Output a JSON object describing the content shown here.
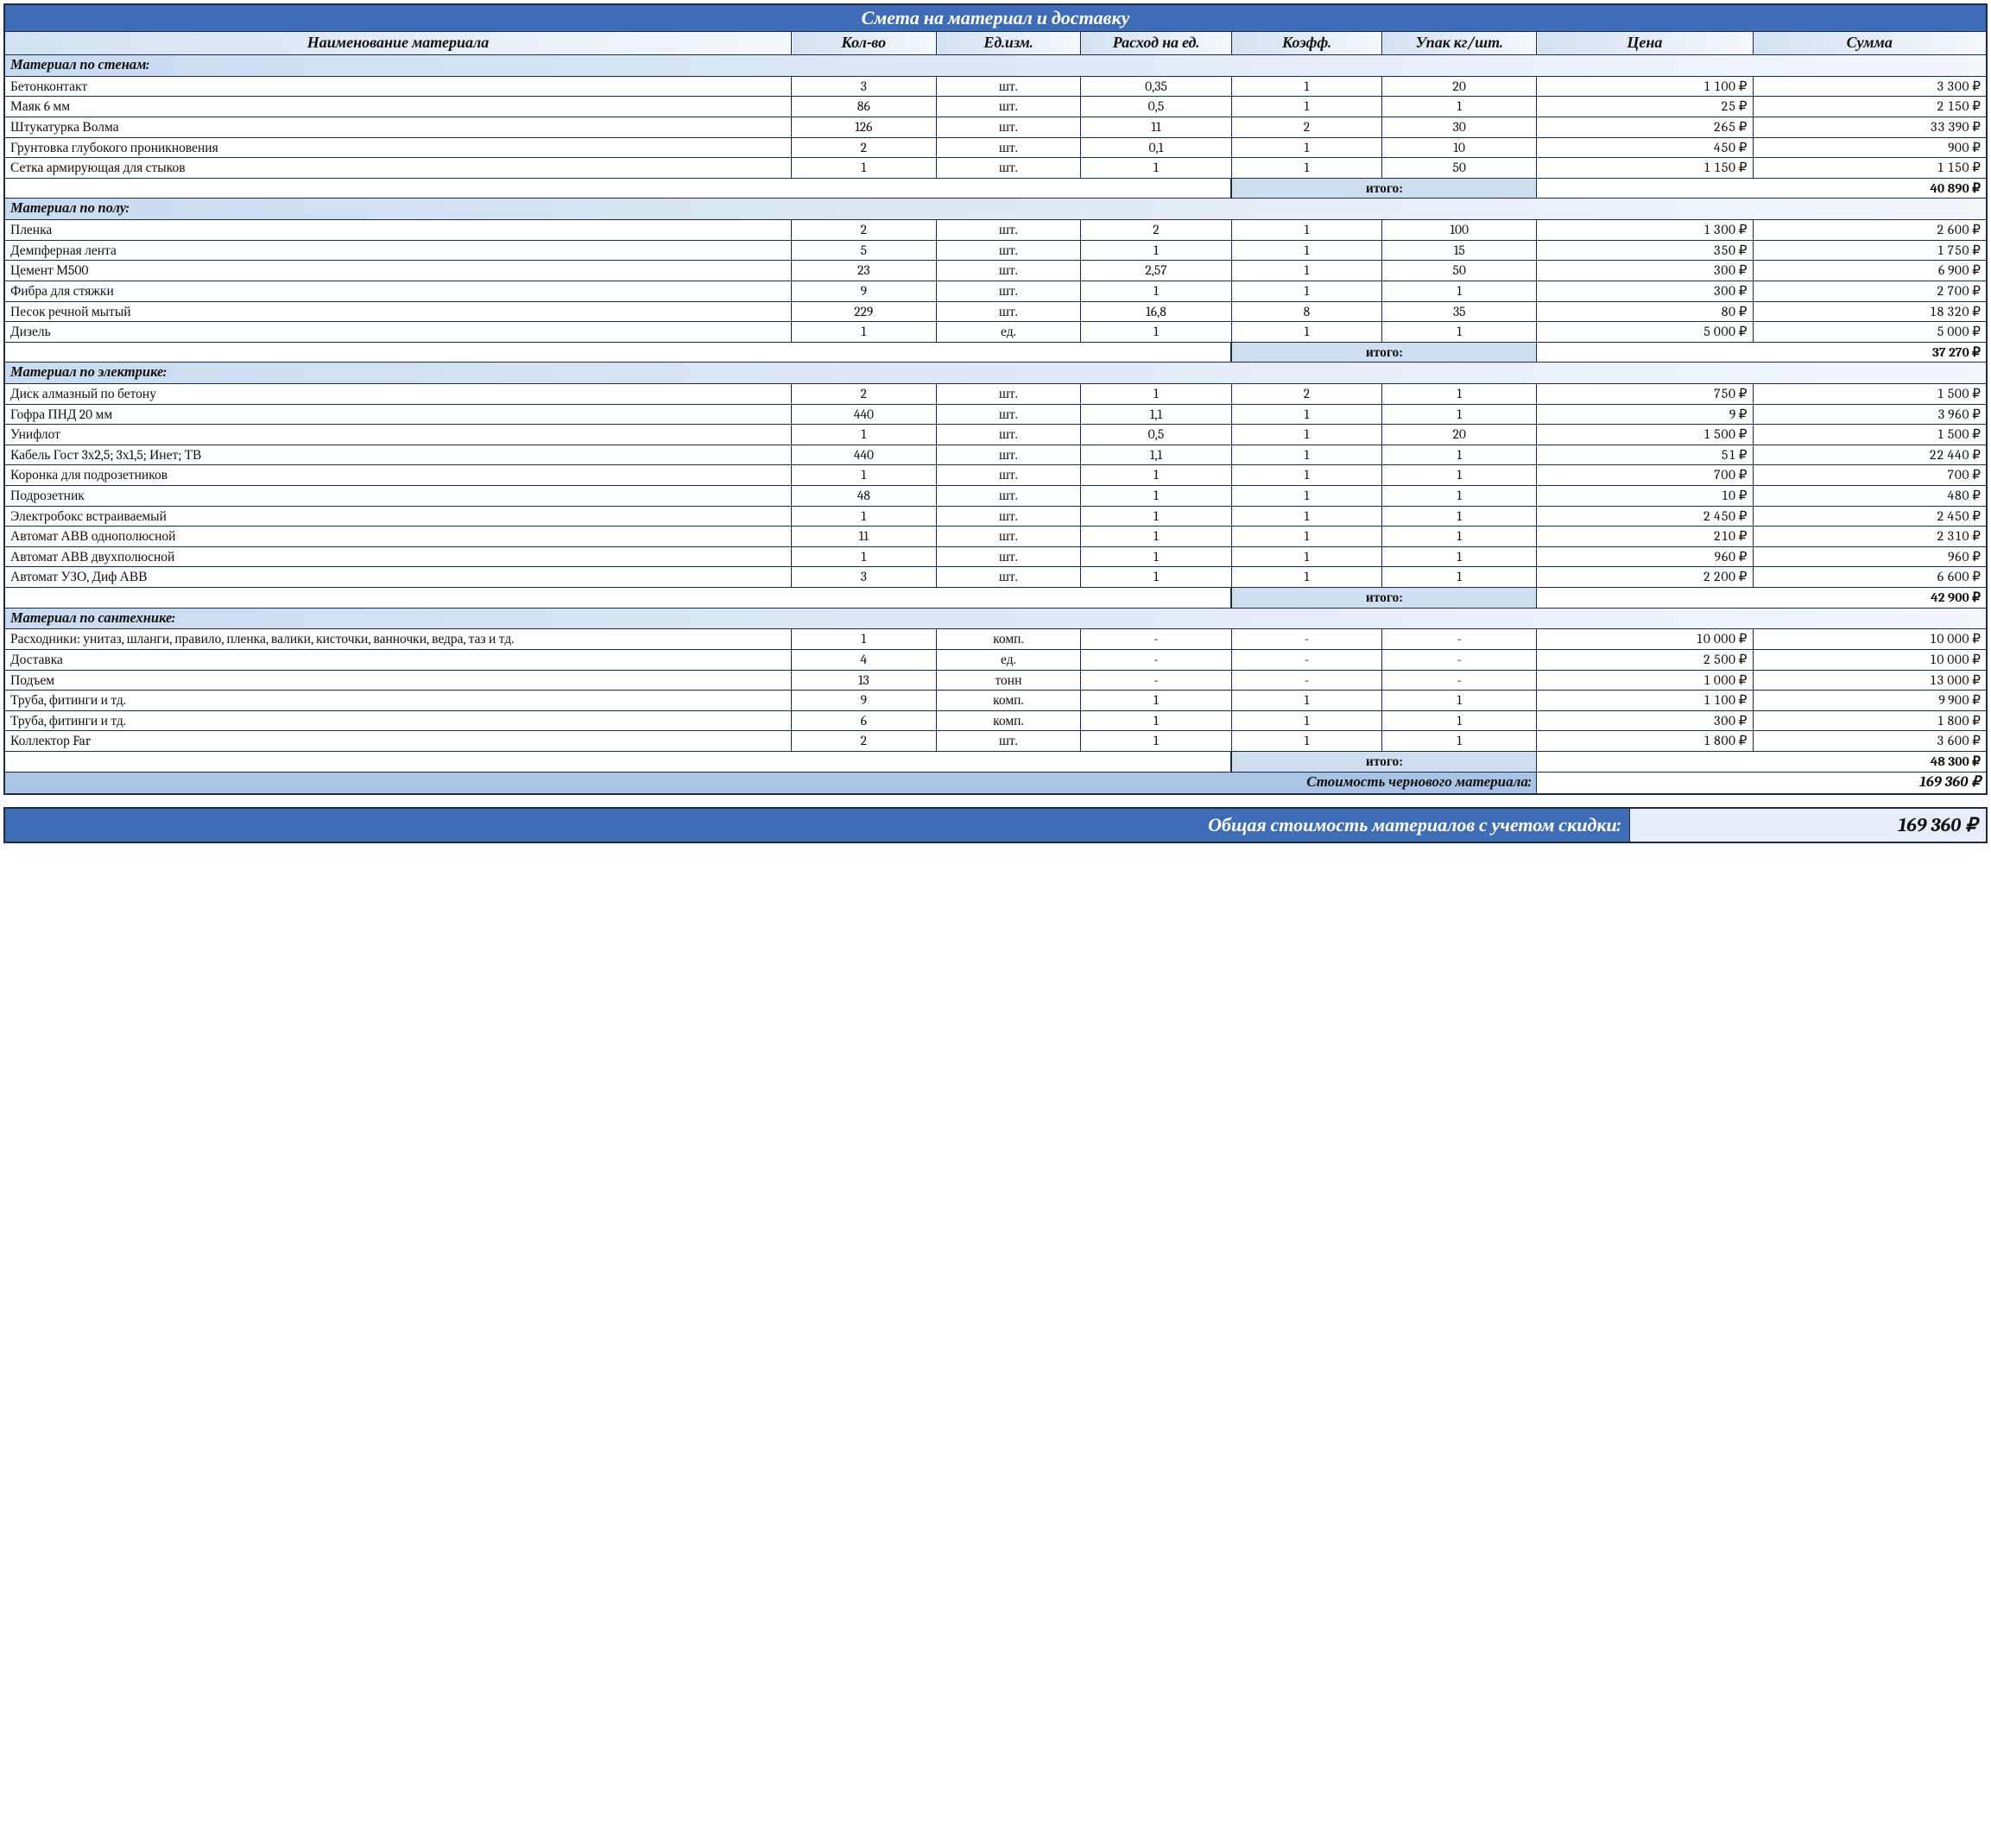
{
  "title": "Смета на материал и доставку",
  "columns": [
    "Наименование материала",
    "Кол-во",
    "Ед.изм.",
    "Расход на ед.",
    "Коэфф.",
    "Упак кг/шт.",
    "Цена",
    "Сумма"
  ],
  "subtotal_label": "итого:",
  "rough_cost_label": "Стоимость чернового материала:",
  "rough_cost_value": "169 360 ₽",
  "grand_label": "Общая стоимость материалов с учетом скидки:",
  "grand_value": "169 360 ₽",
  "col_widths_pct": [
    39.7,
    7.3,
    7.3,
    7.6,
    7.6,
    7.8,
    10.9,
    11.8
  ],
  "colors": {
    "header_bg": "#3f6db5",
    "header_text": "#ffffff",
    "colhdr_grad_from": "#d3e1f2",
    "colhdr_grad_to": "#f5f8fc",
    "group_grad_from": "#c9dbf0",
    "group_grad_to": "#f3f7fc",
    "subtotal_label_bg": "#cfdff1",
    "roughcost_label_bg": "#a9c3e4",
    "border": "#1e2b46",
    "text": "#111111",
    "row_bg": "#ffffff"
  },
  "typography": {
    "family": "Cambria / Georgia serif",
    "base_pt": 15.5,
    "title_pt": 22,
    "header_pt": 18,
    "group_pt": 16.5
  },
  "groups": [
    {
      "title": "Материал по стенам:",
      "subtotal": "40 890 ₽",
      "rows": [
        {
          "name": "Бетонконтакт",
          "qty": "3",
          "unit": "шт.",
          "rate": "0,35",
          "coef": "1",
          "pack": "20",
          "price": "1 100 ₽",
          "sum": "3 300 ₽"
        },
        {
          "name": "Маяк 6 мм",
          "qty": "86",
          "unit": "шт.",
          "rate": "0,5",
          "coef": "1",
          "pack": "1",
          "price": "25 ₽",
          "sum": "2 150 ₽"
        },
        {
          "name": "Штукатурка Волма",
          "qty": "126",
          "unit": "шт.",
          "rate": "11",
          "coef": "2",
          "pack": "30",
          "price": "265 ₽",
          "sum": "33 390 ₽"
        },
        {
          "name": "Грунтовка глубокого проникновения",
          "qty": "2",
          "unit": "шт.",
          "rate": "0,1",
          "coef": "1",
          "pack": "10",
          "price": "450 ₽",
          "sum": "900 ₽"
        },
        {
          "name": "Сетка армирующая для стыков",
          "qty": "1",
          "unit": "шт.",
          "rate": "1",
          "coef": "1",
          "pack": "50",
          "price": "1 150 ₽",
          "sum": "1 150 ₽"
        }
      ]
    },
    {
      "title": "Материал по полу:",
      "subtotal": "37 270 ₽",
      "rows": [
        {
          "name": "Пленка",
          "qty": "2",
          "unit": "шт.",
          "rate": "2",
          "coef": "1",
          "pack": "100",
          "price": "1 300 ₽",
          "sum": "2 600 ₽"
        },
        {
          "name": "Демпферная лента",
          "qty": "5",
          "unit": "шт.",
          "rate": "1",
          "coef": "1",
          "pack": "15",
          "price": "350 ₽",
          "sum": "1 750 ₽"
        },
        {
          "name": "Цемент М500",
          "qty": "23",
          "unit": "шт.",
          "rate": "2,57",
          "coef": "1",
          "pack": "50",
          "price": "300 ₽",
          "sum": "6 900 ₽"
        },
        {
          "name": "Фибра для стяжки",
          "qty": "9",
          "unit": "шт.",
          "rate": "1",
          "coef": "1",
          "pack": "1",
          "price": "300 ₽",
          "sum": "2 700 ₽"
        },
        {
          "name": "Песок речной мытый",
          "qty": "229",
          "unit": "шт.",
          "rate": "16,8",
          "coef": "8",
          "pack": "35",
          "price": "80 ₽",
          "sum": "18 320 ₽"
        },
        {
          "name": "Дизель",
          "qty": "1",
          "unit": "ед.",
          "rate": "1",
          "coef": "1",
          "pack": "1",
          "price": "5 000 ₽",
          "sum": "5 000 ₽"
        }
      ]
    },
    {
      "title": "Материал по электрике:",
      "subtotal": "42 900 ₽",
      "rows": [
        {
          "name": "Диск алмазный по бетону",
          "qty": "2",
          "unit": "шт.",
          "rate": "1",
          "coef": "2",
          "pack": "1",
          "price": "750 ₽",
          "sum": "1 500 ₽"
        },
        {
          "name": "Гофра ПНД 20 мм",
          "qty": "440",
          "unit": "шт.",
          "rate": "1,1",
          "coef": "1",
          "pack": "1",
          "price": "9 ₽",
          "sum": "3 960 ₽"
        },
        {
          "name": "Унифлот",
          "qty": "1",
          "unit": "шт.",
          "rate": "0,5",
          "coef": "1",
          "pack": "20",
          "price": "1 500 ₽",
          "sum": "1 500 ₽"
        },
        {
          "name": "Кабель Гост 3х2,5; 3х1,5; Инет; ТВ",
          "qty": "440",
          "unit": "шт.",
          "rate": "1,1",
          "coef": "1",
          "pack": "1",
          "price": "51 ₽",
          "sum": "22 440 ₽"
        },
        {
          "name": "Коронка для подрозетников",
          "qty": "1",
          "unit": "шт.",
          "rate": "1",
          "coef": "1",
          "pack": "1",
          "price": "700 ₽",
          "sum": "700 ₽"
        },
        {
          "name": "Подрозетник",
          "qty": "48",
          "unit": "шт.",
          "rate": "1",
          "coef": "1",
          "pack": "1",
          "price": "10 ₽",
          "sum": "480 ₽"
        },
        {
          "name": "Электробокс встраиваемый",
          "qty": "1",
          "unit": "шт.",
          "rate": "1",
          "coef": "1",
          "pack": "1",
          "price": "2 450 ₽",
          "sum": "2 450 ₽"
        },
        {
          "name": "Автомат АВВ однополюсной",
          "qty": "11",
          "unit": "шт.",
          "rate": "1",
          "coef": "1",
          "pack": "1",
          "price": "210 ₽",
          "sum": "2 310 ₽"
        },
        {
          "name": "Автомат АВВ двухполюсной",
          "qty": "1",
          "unit": "шт.",
          "rate": "1",
          "coef": "1",
          "pack": "1",
          "price": "960 ₽",
          "sum": "960 ₽"
        },
        {
          "name": "Автомат УЗО, Диф АВВ",
          "qty": "3",
          "unit": "шт.",
          "rate": "1",
          "coef": "1",
          "pack": "1",
          "price": "2 200 ₽",
          "sum": "6 600 ₽"
        }
      ]
    },
    {
      "title": "Материал по сантехнике:",
      "subtotal": "48 300 ₽",
      "rows": [
        {
          "name": "Расходники: унитаз, шланги, правило, пленка, валики, кисточки, ванночки, ведра, таз и тд.",
          "qty": "1",
          "unit": "комп.",
          "rate": "-",
          "coef": "-",
          "pack": "-",
          "price": "10 000 ₽",
          "sum": "10 000 ₽"
        },
        {
          "name": "Доставка",
          "qty": "4",
          "unit": "ед.",
          "rate": "-",
          "coef": "-",
          "pack": "-",
          "price": "2 500 ₽",
          "sum": "10 000 ₽"
        },
        {
          "name": "Подъем",
          "qty": "13",
          "unit": "тонн",
          "rate": "-",
          "coef": "-",
          "pack": "-",
          "price": "1 000 ₽",
          "sum": "13 000 ₽"
        },
        {
          "name": "Труба, фитинги и тд.",
          "qty": "9",
          "unit": "комп.",
          "rate": "1",
          "coef": "1",
          "pack": "1",
          "price": "1 100 ₽",
          "sum": "9 900 ₽"
        },
        {
          "name": "Труба, фитинги и тд.",
          "qty": "6",
          "unit": "комп.",
          "rate": "1",
          "coef": "1",
          "pack": "1",
          "price": "300 ₽",
          "sum": "1 800 ₽"
        },
        {
          "name": "Коллектор Far",
          "qty": "2",
          "unit": "шт.",
          "rate": "1",
          "coef": "1",
          "pack": "1",
          "price": "1 800 ₽",
          "sum": "3 600 ₽"
        }
      ]
    }
  ]
}
